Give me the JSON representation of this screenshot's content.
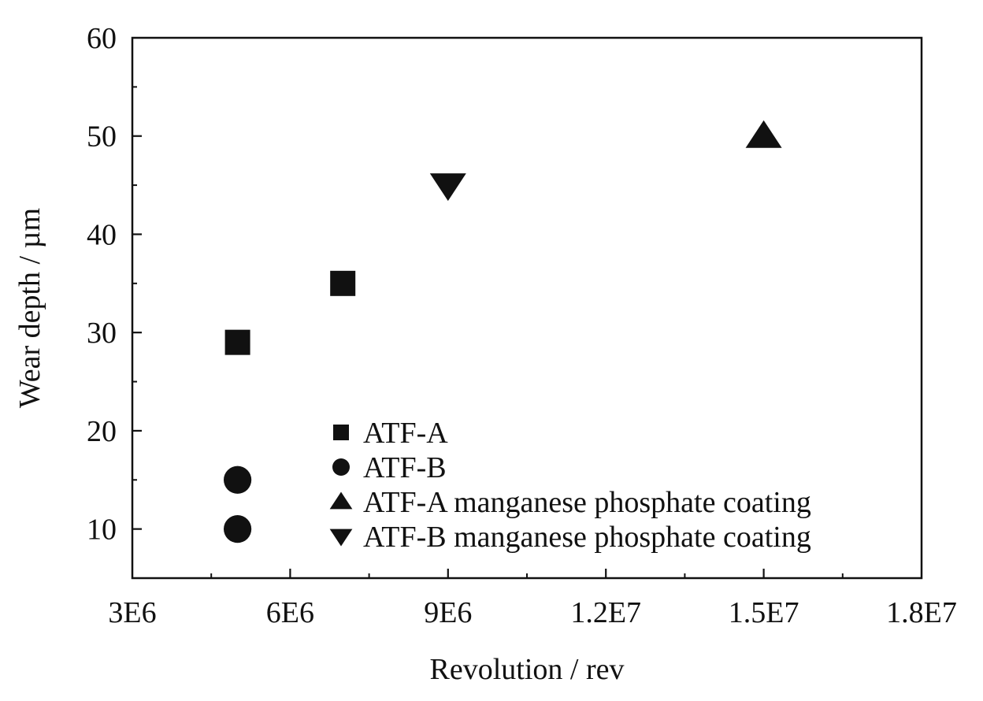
{
  "chart_data": {
    "type": "scatter",
    "title": "",
    "xlabel": "Revolution / rev",
    "ylabel": "Wear depth / µm",
    "xlim": [
      3000000,
      18000000
    ],
    "ylim": [
      5,
      60
    ],
    "x_ticks": [
      3000000,
      6000000,
      9000000,
      12000000,
      15000000,
      18000000
    ],
    "x_tick_labels": [
      "3E6",
      "6E6",
      "9E6",
      "1.2E7",
      "1.5E7",
      "1.8E7"
    ],
    "y_ticks": [
      10,
      20,
      30,
      40,
      50,
      60
    ],
    "y_tick_labels": [
      "10",
      "20",
      "30",
      "40",
      "50",
      "60"
    ],
    "grid": false,
    "legend_position": "bottom-center",
    "series": [
      {
        "name": "ATF-A",
        "marker": "square",
        "color": "#111111",
        "points": [
          {
            "x": 5000000,
            "y": 29
          },
          {
            "x": 7000000,
            "y": 35
          }
        ]
      },
      {
        "name": "ATF-B",
        "marker": "circle",
        "color": "#111111",
        "points": [
          {
            "x": 5000000,
            "y": 15
          },
          {
            "x": 5000000,
            "y": 10
          }
        ]
      },
      {
        "name": "ATF-A manganese phosphate coating",
        "marker": "triangle-up",
        "color": "#111111",
        "points": [
          {
            "x": 15000000,
            "y": 50
          }
        ]
      },
      {
        "name": "ATF-B manganese phosphate coating",
        "marker": "triangle-down",
        "color": "#111111",
        "points": [
          {
            "x": 9000000,
            "y": 45
          }
        ]
      }
    ]
  }
}
